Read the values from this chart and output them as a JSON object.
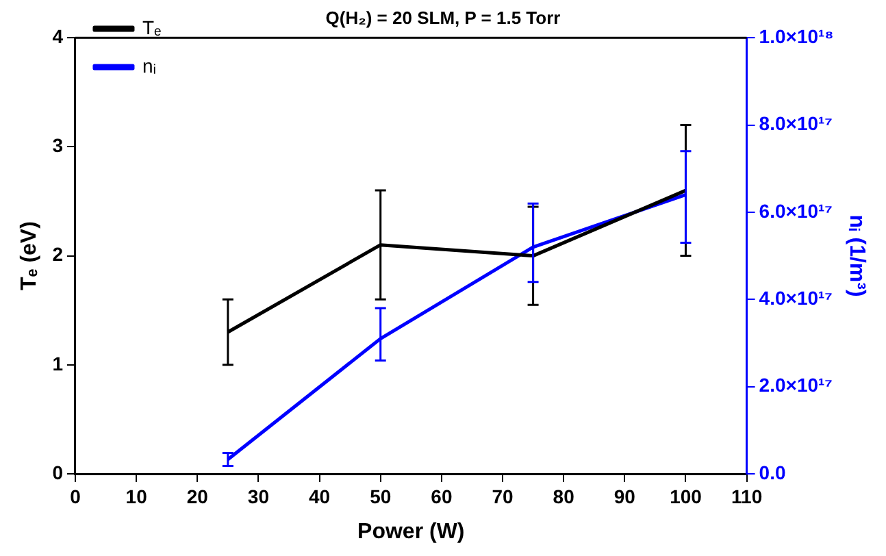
{
  "chart_data": {
    "type": "line",
    "title": "Q(H₂) = 20 SLM, P = 1.5 Torr",
    "xlabel": "Power (W)",
    "ylabel": "Tₑ (eV)",
    "y2label": "nᵢ (1/m³)",
    "x": [
      25,
      50,
      75,
      100
    ],
    "series": [
      {
        "name": "Tₑ",
        "color": "#000000",
        "values": [
          1.3,
          2.1,
          2.0,
          2.6
        ],
        "errors": [
          0.3,
          0.5,
          0.45,
          0.6
        ]
      },
      {
        "name": "nᵢ",
        "color": "#0000ff",
        "axis": "y2",
        "values": [
          3.3e+16,
          3.1e+17,
          5.2e+17,
          6.4e+17
        ],
        "errors": [
          1.5e+16,
          [
            2.6e+17,
            3.8e+17
          ],
          [
            4.4e+17,
            6.2e+17
          ],
          [
            5.3e+17,
            7.4e+17
          ]
        ]
      }
    ],
    "xlim": [
      0,
      110
    ],
    "xticks": [
      0,
      10,
      20,
      30,
      40,
      50,
      60,
      70,
      80,
      90,
      100,
      110
    ],
    "ylim": [
      0,
      4
    ],
    "yticks": [
      0,
      1,
      2,
      3,
      4
    ],
    "y2lim": [
      0,
      1e+18
    ],
    "y2ticks": [
      {
        "value": 0,
        "label": "0.0"
      },
      {
        "value": 2e+17,
        "label": "2.0×10¹⁷"
      },
      {
        "value": 4e+17,
        "label": "4.0×10¹⁷"
      },
      {
        "value": 6e+17,
        "label": "6.0×10¹⁷"
      },
      {
        "value": 8e+17,
        "label": "8.0×10¹⁷"
      },
      {
        "value": 1e+18,
        "label": "1.0×10¹⁸"
      }
    ],
    "grid": false,
    "legend": "top left",
    "marker": "none",
    "line_style": "solid"
  }
}
